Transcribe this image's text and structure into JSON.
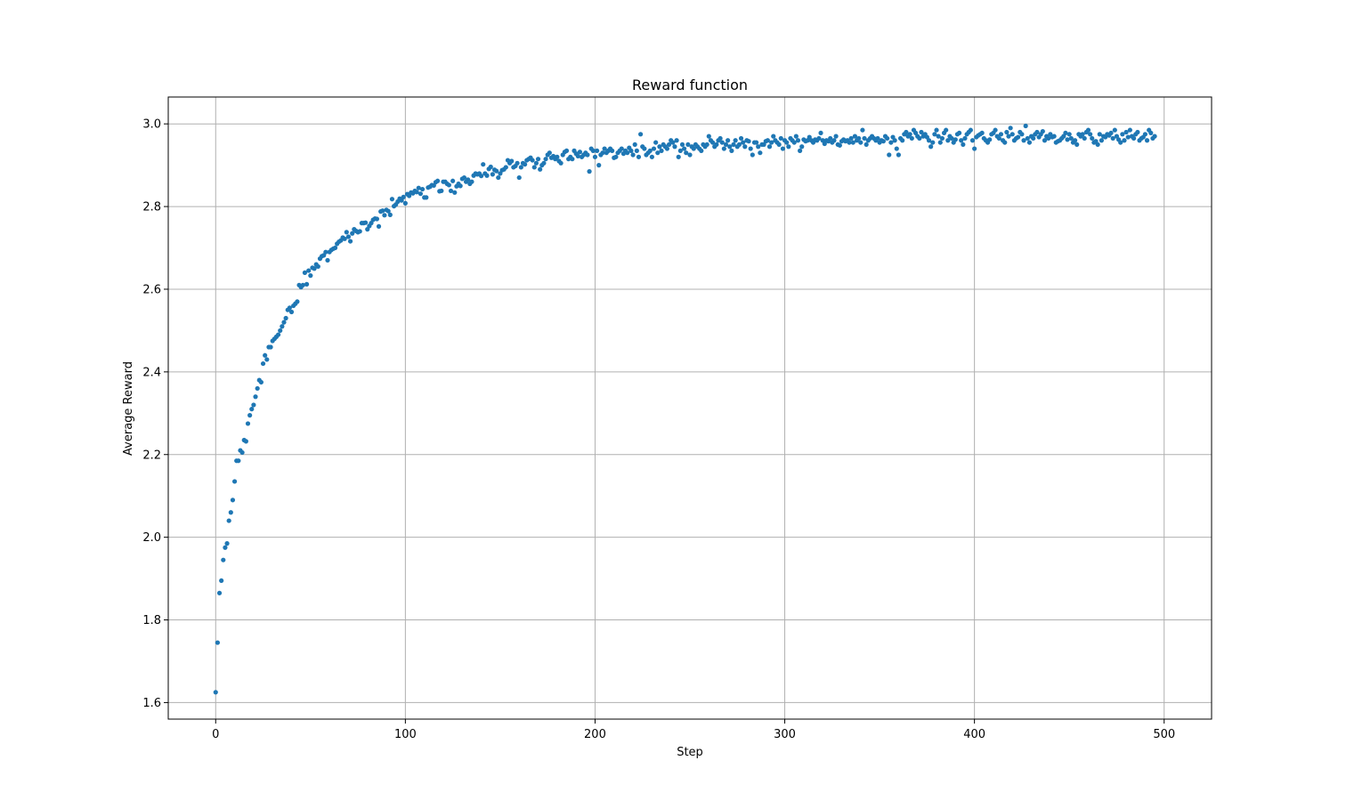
{
  "chart_data": {
    "type": "scatter",
    "title": "Reward function",
    "xlabel": "Step",
    "ylabel": "Average Reward",
    "xlim": [
      -25,
      525
    ],
    "ylim": [
      1.56,
      3.065
    ],
    "xticks": [
      0,
      100,
      200,
      300,
      400,
      500
    ],
    "xtick_labels": [
      "0",
      "100",
      "200",
      "300",
      "400",
      "500"
    ],
    "yticks": [
      1.6,
      1.8,
      2.0,
      2.2,
      2.4,
      2.6,
      2.8,
      3.0
    ],
    "ytick_labels": [
      "1.6",
      "1.8",
      "2.0",
      "2.2",
      "2.4",
      "2.6",
      "2.8",
      "3.0"
    ],
    "grid": true,
    "series": [
      {
        "name": "Average Reward",
        "color": "#1f77b4",
        "x_start": 0,
        "x_step": 1,
        "values": [
          1.625,
          1.745,
          1.865,
          1.895,
          1.945,
          1.975,
          1.985,
          2.04,
          2.06,
          2.09,
          2.135,
          2.185,
          2.185,
          2.21,
          2.205,
          2.235,
          2.232,
          2.275,
          2.295,
          2.31,
          2.32,
          2.34,
          2.36,
          2.38,
          2.375,
          2.42,
          2.44,
          2.43,
          2.46,
          2.46,
          2.475,
          2.48,
          2.485,
          2.49,
          2.5,
          2.51,
          2.52,
          2.53,
          2.55,
          2.555,
          2.545,
          2.56,
          2.565,
          2.57,
          2.61,
          2.605,
          2.61,
          2.64,
          2.612,
          2.645,
          2.633,
          2.652,
          2.65,
          2.66,
          2.655,
          2.674,
          2.68,
          2.682,
          2.69,
          2.67,
          2.69,
          2.695,
          2.698,
          2.7,
          2.71,
          2.715,
          2.718,
          2.725,
          2.722,
          2.738,
          2.727,
          2.716,
          2.735,
          2.745,
          2.741,
          2.738,
          2.74,
          2.76,
          2.76,
          2.761,
          2.745,
          2.753,
          2.76,
          2.768,
          2.771,
          2.77,
          2.752,
          2.788,
          2.79,
          2.779,
          2.792,
          2.789,
          2.78,
          2.818,
          2.801,
          2.805,
          2.812,
          2.819,
          2.815,
          2.823,
          2.808,
          2.83,
          2.826,
          2.834,
          2.832,
          2.838,
          2.835,
          2.845,
          2.831,
          2.842,
          2.822,
          2.822,
          2.846,
          2.848,
          2.852,
          2.851,
          2.859,
          2.862,
          2.837,
          2.838,
          2.86,
          2.86,
          2.855,
          2.852,
          2.838,
          2.862,
          2.834,
          2.849,
          2.855,
          2.85,
          2.867,
          2.87,
          2.86,
          2.865,
          2.855,
          2.86,
          2.875,
          2.88,
          2.878,
          2.88,
          2.874,
          2.902,
          2.88,
          2.875,
          2.891,
          2.896,
          2.878,
          2.889,
          2.886,
          2.87,
          2.88,
          2.888,
          2.89,
          2.895,
          2.912,
          2.905,
          2.91,
          2.895,
          2.898,
          2.905,
          2.87,
          2.895,
          2.905,
          2.902,
          2.912,
          2.915,
          2.918,
          2.912,
          2.895,
          2.905,
          2.915,
          2.89,
          2.9,
          2.905,
          2.915,
          2.925,
          2.93,
          2.918,
          2.922,
          2.915,
          2.92,
          2.91,
          2.905,
          2.925,
          2.932,
          2.935,
          2.915,
          2.92,
          2.915,
          2.935,
          2.928,
          2.922,
          2.932,
          2.92,
          2.925,
          2.93,
          2.925,
          2.885,
          2.94,
          2.935,
          2.92,
          2.935,
          2.9,
          2.925,
          2.93,
          2.94,
          2.93,
          2.935,
          2.94,
          2.935,
          2.918,
          2.92,
          2.93,
          2.935,
          2.94,
          2.928,
          2.935,
          2.93,
          2.942,
          2.935,
          2.925,
          2.95,
          2.935,
          2.92,
          2.975,
          2.945,
          2.94,
          2.925,
          2.93,
          2.935,
          2.92,
          2.94,
          2.955,
          2.93,
          2.945,
          2.935,
          2.95,
          2.945,
          2.94,
          2.95,
          2.96,
          2.955,
          2.945,
          2.96,
          2.92,
          2.935,
          2.95,
          2.94,
          2.93,
          2.95,
          2.925,
          2.945,
          2.94,
          2.95,
          2.945,
          2.94,
          2.935,
          2.95,
          2.945,
          2.95,
          2.97,
          2.96,
          2.955,
          2.945,
          2.95,
          2.96,
          2.965,
          2.955,
          2.94,
          2.95,
          2.96,
          2.945,
          2.935,
          2.95,
          2.96,
          2.945,
          2.95,
          2.965,
          2.955,
          2.945,
          2.96,
          2.958,
          2.94,
          2.925,
          2.955,
          2.955,
          2.945,
          2.93,
          2.95,
          2.95,
          2.958,
          2.96,
          2.945,
          2.955,
          2.97,
          2.96,
          2.955,
          2.95,
          2.965,
          2.94,
          2.96,
          2.955,
          2.945,
          2.965,
          2.96,
          2.955,
          2.97,
          2.96,
          2.935,
          2.945,
          2.962,
          2.958,
          2.96,
          2.968,
          2.96,
          2.955,
          2.962,
          2.96,
          2.965,
          2.978,
          2.96,
          2.952,
          2.96,
          2.958,
          2.965,
          2.955,
          2.96,
          2.97,
          2.95,
          2.948,
          2.958,
          2.962,
          2.958,
          2.96,
          2.955,
          2.965,
          2.955,
          2.97,
          2.96,
          2.965,
          2.955,
          2.985,
          2.965,
          2.95,
          2.96,
          2.965,
          2.97,
          2.965,
          2.96,
          2.965,
          2.955,
          2.96,
          2.958,
          2.97,
          2.965,
          2.925,
          2.955,
          2.968,
          2.96,
          2.94,
          2.925,
          2.965,
          2.96,
          2.975,
          2.98,
          2.97,
          2.975,
          2.965,
          2.985,
          2.978,
          2.97,
          2.965,
          2.98,
          2.97,
          2.975,
          2.968,
          2.96,
          2.945,
          2.955,
          2.975,
          2.985,
          2.97,
          2.955,
          2.965,
          2.978,
          2.985,
          2.96,
          2.97,
          2.965,
          2.955,
          2.962,
          2.975,
          2.978,
          2.96,
          2.95,
          2.965,
          2.975,
          2.98,
          2.985,
          2.96,
          2.94,
          2.968,
          2.972,
          2.975,
          2.978,
          2.965,
          2.96,
          2.955,
          2.962,
          2.975,
          2.978,
          2.985,
          2.97,
          2.965,
          2.975,
          2.96,
          2.955,
          2.98,
          2.97,
          2.99,
          2.975,
          2.96,
          2.965,
          2.968,
          2.98,
          2.975,
          2.96,
          2.995,
          2.965,
          2.955,
          2.97,
          2.965,
          2.975,
          2.98,
          2.968,
          2.975,
          2.982,
          2.96,
          2.97,
          2.965,
          2.975,
          2.968,
          2.97,
          2.955,
          2.958,
          2.96,
          2.965,
          2.97,
          2.978,
          2.962,
          2.975,
          2.965,
          2.955,
          2.96,
          2.95,
          2.975,
          2.97,
          2.975,
          2.965,
          2.98,
          2.985,
          2.975,
          2.965,
          2.955,
          2.958,
          2.95,
          2.975,
          2.96,
          2.97,
          2.968,
          2.975,
          2.972,
          2.978,
          2.965,
          2.985,
          2.97,
          2.962,
          2.955,
          2.975,
          2.96,
          2.98,
          2.968,
          2.985,
          2.97,
          2.965,
          2.975,
          2.98,
          2.96,
          2.965,
          2.968,
          2.975,
          2.96,
          2.985,
          2.978,
          2.965,
          2.97
        ]
      }
    ]
  }
}
